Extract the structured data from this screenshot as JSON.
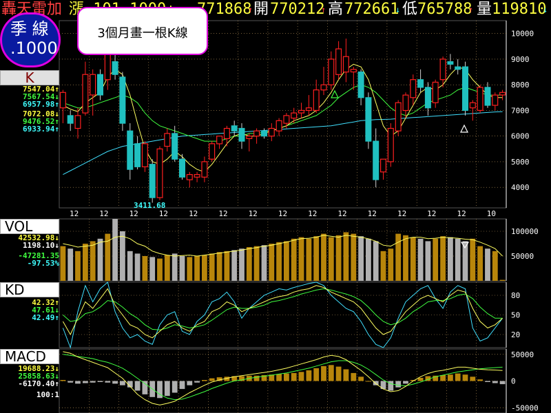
{
  "header": {
    "name": "轟天雷加",
    "partial": "漲  101  1000↓",
    "close_value": "771868",
    "close_arrow": "↑",
    "open_label": "開",
    "open_value": "770212",
    "open_arrow": "↑",
    "high_label": "高",
    "high_value": "772661",
    "high_arrow": "↓",
    "low_label": "低",
    "low_value": "765788",
    "low_arrow": "↑",
    "vol_label": "量",
    "vol_value": "119810",
    "vol_arrow": "↓"
  },
  "badge": {
    "line1": "季 線",
    "line2": ".1000"
  },
  "callout": {
    "text": "3個月畫一根K線"
  },
  "panels": {
    "k": {
      "label": "K",
      "values": [
        "7547.04↑",
        "7567.54↓",
        "6957.98↑",
        "7072.08↓",
        "9476.52↑",
        "6933.94↑"
      ],
      "min_label": "3411.68"
    },
    "vol": {
      "label": "VOL",
      "values": [
        "42532.98↓",
        "1198.10↓",
        "-47281.35",
        "-97.53%"
      ]
    },
    "kd": {
      "label": "KD",
      "values": [
        "42.32↑",
        "47.61↓",
        "42.49↑"
      ]
    },
    "macd": {
      "label": "MACD",
      "values": [
        "19688.23↓",
        "25858.63↓",
        "-6170.40↑"
      ],
      "scale": "100:1"
    }
  },
  "colors": {
    "up": "#ff2020",
    "down": "#20c0c0",
    "vol_up": "#b8860b",
    "vol_down": "#b0b0b0",
    "ma_fast": "#ffff60",
    "ma_mid": "#40ff40",
    "ma_slow": "#40e0ff",
    "grid": "#c8a060",
    "header_yellow": "#ffff40",
    "value_red": "#ff2020",
    "value_green": "#40ff40",
    "value_cyan": "#40ffff",
    "value_white": "#ffffff",
    "badge_bg": "#0a1aa0",
    "badge_border": "#e000e0"
  },
  "chart_data": [
    {
      "type": "candlestick",
      "yticks": [
        4000,
        5000,
        6000,
        7000,
        8000,
        9000,
        10000
      ],
      "ylim": [
        3200,
        10500
      ],
      "xticks": [
        "12",
        "12",
        "12",
        "12",
        "12",
        "12",
        "12",
        "12",
        "12",
        "12",
        "12",
        "12",
        "12",
        "12",
        "10"
      ],
      "candles": [
        {
          "o": 7100,
          "h": 7800,
          "l": 6500,
          "c": 7700
        },
        {
          "o": 6800,
          "h": 7000,
          "l": 6200,
          "c": 6500
        },
        {
          "o": 6300,
          "h": 7100,
          "l": 5900,
          "c": 6800
        },
        {
          "o": 6900,
          "h": 8900,
          "l": 6800,
          "c": 8400
        },
        {
          "o": 7600,
          "h": 8600,
          "l": 6800,
          "c": 8400
        },
        {
          "o": 8400,
          "h": 8600,
          "l": 7400,
          "c": 7600
        },
        {
          "o": 8200,
          "h": 9900,
          "l": 7800,
          "c": 9500
        },
        {
          "o": 8900,
          "h": 9200,
          "l": 8200,
          "c": 8400
        },
        {
          "o": 8300,
          "h": 8500,
          "l": 6200,
          "c": 6500
        },
        {
          "o": 6200,
          "h": 6500,
          "l": 4300,
          "c": 4700
        },
        {
          "o": 5700,
          "h": 6000,
          "l": 4700,
          "c": 4800
        },
        {
          "o": 4800,
          "h": 5800,
          "l": 4600,
          "c": 5700
        },
        {
          "o": 4900,
          "h": 5100,
          "l": 3400,
          "c": 3600
        },
        {
          "o": 3600,
          "h": 5600,
          "l": 3500,
          "c": 5500
        },
        {
          "o": 5600,
          "h": 6300,
          "l": 5400,
          "c": 6100
        },
        {
          "o": 6100,
          "h": 6400,
          "l": 5000,
          "c": 5100
        },
        {
          "o": 5100,
          "h": 5300,
          "l": 4300,
          "c": 4400
        },
        {
          "o": 4300,
          "h": 4600,
          "l": 4000,
          "c": 4500
        },
        {
          "o": 4400,
          "h": 4600,
          "l": 4200,
          "c": 4500
        },
        {
          "o": 4400,
          "h": 5200,
          "l": 4200,
          "c": 5000
        },
        {
          "o": 5100,
          "h": 5800,
          "l": 5000,
          "c": 5700
        },
        {
          "o": 5700,
          "h": 6000,
          "l": 5500,
          "c": 6000
        },
        {
          "o": 5900,
          "h": 6400,
          "l": 5600,
          "c": 6300
        },
        {
          "o": 6400,
          "h": 6600,
          "l": 6000,
          "c": 6200
        },
        {
          "o": 6300,
          "h": 6500,
          "l": 5500,
          "c": 5800
        },
        {
          "o": 5900,
          "h": 6100,
          "l": 5400,
          "c": 6000
        },
        {
          "o": 6000,
          "h": 6300,
          "l": 5700,
          "c": 6200
        },
        {
          "o": 6200,
          "h": 6300,
          "l": 5900,
          "c": 6000
        },
        {
          "o": 6000,
          "h": 6500,
          "l": 5800,
          "c": 6300
        },
        {
          "o": 6200,
          "h": 6700,
          "l": 6000,
          "c": 6600
        },
        {
          "o": 6500,
          "h": 6900,
          "l": 6300,
          "c": 6800
        },
        {
          "o": 6700,
          "h": 7100,
          "l": 6500,
          "c": 6900
        },
        {
          "o": 6900,
          "h": 7300,
          "l": 6700,
          "c": 7000
        },
        {
          "o": 7000,
          "h": 7600,
          "l": 6800,
          "c": 7100
        },
        {
          "o": 7000,
          "h": 8200,
          "l": 6900,
          "c": 7800
        },
        {
          "o": 7800,
          "h": 8700,
          "l": 7600,
          "c": 8000
        },
        {
          "o": 8000,
          "h": 9300,
          "l": 7800,
          "c": 9000
        },
        {
          "o": 8400,
          "h": 9700,
          "l": 8200,
          "c": 9400
        },
        {
          "o": 8500,
          "h": 9800,
          "l": 8100,
          "c": 9100
        },
        {
          "o": 8500,
          "h": 8700,
          "l": 7800,
          "c": 8600
        },
        {
          "o": 8500,
          "h": 8600,
          "l": 7200,
          "c": 7500
        },
        {
          "o": 7500,
          "h": 7700,
          "l": 5500,
          "c": 5800
        },
        {
          "o": 5800,
          "h": 6300,
          "l": 4000,
          "c": 4300
        },
        {
          "o": 4600,
          "h": 5100,
          "l": 4300,
          "c": 5100
        },
        {
          "o": 5000,
          "h": 6500,
          "l": 4800,
          "c": 6300
        },
        {
          "o": 6200,
          "h": 7400,
          "l": 6000,
          "c": 7300
        },
        {
          "o": 7000,
          "h": 7700,
          "l": 6700,
          "c": 7600
        },
        {
          "o": 7500,
          "h": 8400,
          "l": 7200,
          "c": 8200
        },
        {
          "o": 8200,
          "h": 8600,
          "l": 7700,
          "c": 7900
        },
        {
          "o": 7900,
          "h": 8100,
          "l": 6800,
          "c": 7100
        },
        {
          "o": 7300,
          "h": 8200,
          "l": 7100,
          "c": 8100
        },
        {
          "o": 8200,
          "h": 9100,
          "l": 7900,
          "c": 9000
        },
        {
          "o": 8900,
          "h": 9200,
          "l": 8600,
          "c": 8800
        },
        {
          "o": 8700,
          "h": 9000,
          "l": 8400,
          "c": 8600
        },
        {
          "o": 8700,
          "h": 8900,
          "l": 6800,
          "c": 7000
        },
        {
          "o": 7100,
          "h": 7400,
          "l": 6600,
          "c": 7300
        },
        {
          "o": 7000,
          "h": 8000,
          "l": 6900,
          "c": 7900
        },
        {
          "o": 7900,
          "h": 8100,
          "l": 7100,
          "c": 7200
        },
        {
          "o": 7200,
          "h": 7700,
          "l": 7000,
          "c": 7600
        },
        {
          "o": 7600,
          "h": 7800,
          "l": 7400,
          "c": 7700
        }
      ],
      "ma_fast": [
        7200,
        7050,
        6950,
        7300,
        7500,
        7700,
        8300,
        8600,
        8400,
        7600,
        6500,
        5500,
        5000,
        4900,
        5100,
        5400,
        5200,
        4900,
        4700,
        4600,
        4900,
        5300,
        5700,
        6000,
        6100,
        6000,
        6000,
        6100,
        6200,
        6300,
        6400,
        6600,
        6700,
        6800,
        7000,
        7300,
        7700,
        8200,
        8600,
        8800,
        8700,
        8200,
        7300,
        6400,
        6000,
        6200,
        6700,
        7200,
        7700,
        7900,
        7800,
        8000,
        8400,
        8700,
        8600,
        8200,
        7900,
        7600,
        7500,
        7500
      ],
      "ma_mid": [
        7300,
        7200,
        7100,
        7100,
        7200,
        7300,
        7400,
        7500,
        7600,
        7500,
        7300,
        6900,
        6600,
        6400,
        6300,
        6200,
        6100,
        6000,
        5900,
        5800,
        5800,
        5800,
        5900,
        6000,
        6000,
        6100,
        6100,
        6150,
        6200,
        6300,
        6400,
        6500,
        6600,
        6700,
        6800,
        7000,
        7200,
        7500,
        7700,
        7900,
        8000,
        7900,
        7700,
        7400,
        7100,
        6900,
        6800,
        6900,
        7100,
        7300,
        7400,
        7500,
        7600,
        7800,
        7900,
        7800,
        7700,
        7600,
        7600,
        7600
      ],
      "ma_slow": [
        4500,
        4650,
        4800,
        4950,
        5100,
        5250,
        5400,
        5500,
        5600,
        5650,
        5700,
        5750,
        5800,
        5850,
        5900,
        5950,
        6000,
        6020,
        6040,
        6060,
        6080,
        6100,
        6120,
        6140,
        6160,
        6180,
        6200,
        6220,
        6240,
        6260,
        6280,
        6300,
        6320,
        6340,
        6360,
        6380,
        6400,
        6450,
        6500,
        6550,
        6600,
        6620,
        6640,
        6650,
        6660,
        6680,
        6700,
        6720,
        6740,
        6760,
        6780,
        6800,
        6820,
        6840,
        6860,
        6880,
        6900,
        6920,
        6940,
        6950
      ]
    },
    {
      "type": "bar",
      "name": "VOL",
      "yticks": [
        50000,
        100000
      ],
      "ylim": [
        0,
        125000
      ],
      "values": [
        70000,
        65000,
        60000,
        75000,
        80000,
        85000,
        95000,
        125000,
        100000,
        60000,
        55000,
        50000,
        48000,
        45000,
        52000,
        55000,
        50000,
        48000,
        50000,
        52000,
        55000,
        58000,
        60000,
        62000,
        65000,
        68000,
        70000,
        72000,
        75000,
        78000,
        80000,
        85000,
        88000,
        85000,
        90000,
        95000,
        88000,
        92000,
        98000,
        95000,
        90000,
        85000,
        80000,
        60000,
        65000,
        95000,
        92000,
        88000,
        85000,
        80000,
        85000,
        90000,
        88000,
        85000,
        80000,
        85000,
        70000,
        65000,
        60000,
        2000
      ],
      "ma": [
        75000,
        72000,
        68000,
        70000,
        72000,
        78000,
        80000,
        88000,
        90000,
        85000,
        75000,
        70000,
        60000,
        55000,
        52000,
        50000,
        51000,
        52000,
        50000,
        52000,
        54000,
        56000,
        58000,
        60000,
        62000,
        65000,
        67000,
        70000,
        72000,
        75000,
        78000,
        82000,
        85000,
        86000,
        88000,
        92000,
        90000,
        88000,
        92000,
        90000,
        88000,
        85000,
        80000,
        72000,
        70000,
        78000,
        85000,
        88000,
        88000,
        85000,
        86000,
        88000,
        87000,
        86000,
        84000,
        83000,
        78000,
        72000,
        65000,
        50000
      ]
    },
    {
      "type": "line",
      "name": "KD",
      "yticks": [
        20,
        50,
        80
      ],
      "ylim": [
        0,
        100
      ],
      "k": [
        40,
        20,
        45,
        70,
        60,
        75,
        90,
        65,
        50,
        35,
        30,
        20,
        15,
        25,
        35,
        40,
        30,
        25,
        35,
        40,
        55,
        60,
        70,
        65,
        55,
        60,
        65,
        70,
        75,
        78,
        80,
        85,
        88,
        90,
        95,
        92,
        85,
        80,
        75,
        70,
        60,
        45,
        30,
        20,
        25,
        40,
        55,
        65,
        75,
        80,
        75,
        70,
        80,
        88,
        85,
        60,
        40,
        30,
        35,
        45
      ],
      "d": [
        50,
        40,
        42,
        52,
        55,
        62,
        72,
        70,
        62,
        52,
        45,
        35,
        28,
        27,
        30,
        35,
        33,
        30,
        32,
        35,
        42,
        50,
        58,
        62,
        60,
        60,
        62,
        65,
        70,
        72,
        75,
        78,
        82,
        85,
        88,
        90,
        88,
        85,
        82,
        78,
        72,
        62,
        50,
        40,
        35,
        38,
        45,
        55,
        62,
        70,
        72,
        72,
        75,
        80,
        82,
        75,
        62,
        52,
        45,
        45
      ],
      "j": [
        30,
        0,
        55,
        95,
        70,
        90,
        100,
        55,
        30,
        15,
        20,
        10,
        5,
        35,
        50,
        55,
        25,
        20,
        40,
        50,
        70,
        75,
        85,
        70,
        45,
        60,
        70,
        80,
        85,
        90,
        88,
        92,
        95,
        98,
        100,
        95,
        80,
        70,
        60,
        55,
        40,
        20,
        5,
        0,
        15,
        45,
        70,
        80,
        90,
        95,
        75,
        60,
        85,
        95,
        90,
        30,
        10,
        15,
        30,
        45
      ]
    },
    {
      "type": "bar",
      "name": "MACD",
      "yticks": [
        -50000,
        0,
        50000
      ],
      "ylim": [
        -60000,
        60000
      ],
      "hist": [
        2000,
        -3000,
        -5000,
        -4000,
        -3000,
        -2000,
        -3000,
        -5000,
        -8000,
        -12000,
        -18000,
        -25000,
        -30000,
        -32000,
        -28000,
        -22000,
        -15000,
        -8000,
        -3000,
        2000,
        5000,
        7000,
        8000,
        9000,
        9000,
        10000,
        10000,
        11000,
        12000,
        13000,
        14000,
        15000,
        17000,
        20000,
        24000,
        28000,
        30000,
        27000,
        22000,
        15000,
        8000,
        0,
        -8000,
        -15000,
        -18000,
        -12000,
        -5000,
        2000,
        6000,
        9000,
        10000,
        11000,
        12000,
        14000,
        12000,
        8000,
        3000,
        -2000,
        -4000,
        -6000
      ],
      "dif": [
        55000,
        52000,
        45000,
        40000,
        35000,
        30000,
        25000,
        15000,
        5000,
        -10000,
        -25000,
        -35000,
        -42000,
        -45000,
        -42000,
        -38000,
        -30000,
        -22000,
        -15000,
        -8000,
        -2000,
        2000,
        5000,
        8000,
        10000,
        12000,
        14000,
        16000,
        18000,
        21000,
        24000,
        28000,
        32000,
        36000,
        40000,
        45000,
        48000,
        46000,
        40000,
        30000,
        20000,
        8000,
        -5000,
        -15000,
        -20000,
        -18000,
        -10000,
        0,
        8000,
        14000,
        18000,
        20000,
        23000,
        26000,
        26000,
        24000,
        22000,
        21000,
        20500,
        19700
      ],
      "dea": [
        50000,
        48000,
        46000,
        44000,
        42000,
        38000,
        35000,
        30000,
        24000,
        15000,
        5000,
        -5000,
        -15000,
        -25000,
        -32000,
        -35000,
        -34000,
        -30000,
        -25000,
        -20000,
        -14000,
        -9000,
        -4000,
        0,
        2000,
        5000,
        7000,
        9000,
        11000,
        13000,
        15000,
        18000,
        21000,
        24000,
        28000,
        32000,
        36000,
        38000,
        38000,
        35000,
        30000,
        22000,
        12000,
        2000,
        -5000,
        -8000,
        -9000,
        -6000,
        -2000,
        3000,
        8000,
        11000,
        14000,
        17000,
        19000,
        21000,
        23000,
        24000,
        25000,
        25900
      ]
    }
  ]
}
